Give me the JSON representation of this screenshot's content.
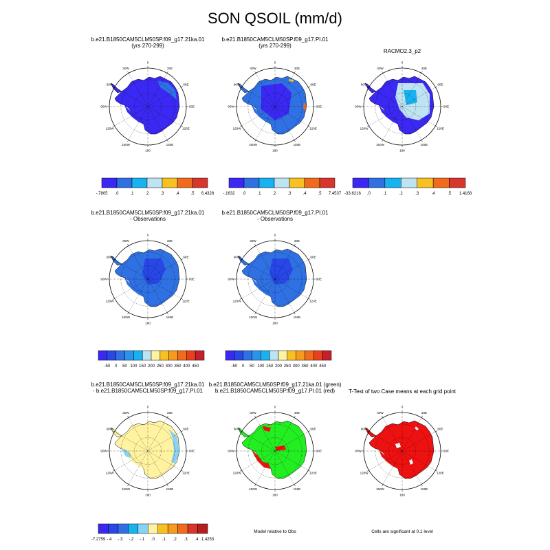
{
  "title": "SON QSOIL (mm/d)",
  "lon_labels": [
    "30W",
    "0",
    "30E",
    "60E",
    "90E",
    "120E",
    "150E",
    "180",
    "150W",
    "120W",
    "90W",
    "60W"
  ],
  "palettes": {
    "p8": [
      "#3b28f2",
      "#2f71e3",
      "#19b2f0",
      "#bfe3f2",
      "#f7c121",
      "#f26b1d",
      "#d8362c"
    ],
    "p12": [
      "#3b28f2",
      "#2747e6",
      "#2f71e3",
      "#2b93ea",
      "#19b2f0",
      "#bfe3f2",
      "#fff2a0",
      "#f7c121",
      "#f79a1d",
      "#f26b1d",
      "#e8401f",
      "#c5202a"
    ],
    "p11": [
      "#3b28f2",
      "#2747e6",
      "#2f71e3",
      "#19b2f0",
      "#88d2f2",
      "#fff2a0",
      "#f7c121",
      "#f79a1d",
      "#f26b1d",
      "#d8362c",
      "#b51e1e"
    ]
  },
  "panels": [
    {
      "id": "p1",
      "title1": "b.e21.B1850CAM5CLM50SP.f09_g17.21ka.01",
      "title2": "(yrs 270-299)",
      "colorbar": {
        "palette": "p8",
        "labels": [
          "-.7805",
          ".0",
          ".1",
          ".2",
          ".3",
          ".4",
          ".5",
          "6.4328"
        ]
      }
    },
    {
      "id": "p2",
      "title1": "b.e21.B1850CAM5CLM50SP.f09_g17.PI.01",
      "title2": "(yrs 270-299)",
      "colorbar": {
        "palette": "p8",
        "labels": [
          "-.1632",
          ".0",
          ".1",
          ".2",
          ".3",
          ".4",
          ".5",
          "7.4537"
        ]
      }
    },
    {
      "id": "p3",
      "title1": "RACMO2.3_p2",
      "title2": "",
      "colorbar": {
        "palette": "p8",
        "labels": [
          "-33.6216",
          ".0",
          ".1",
          ".2",
          ".3",
          ".4",
          ".5",
          "1.4168"
        ]
      }
    },
    {
      "id": "p4",
      "title1": "b.e21.B1850CAM5CLM50SP.f09_g17.21ka.01",
      "title2": "- Observations",
      "colorbar": {
        "palette": "p12",
        "labels": [
          "-50",
          "0",
          "50",
          "100",
          "150",
          "200",
          "250",
          "300",
          "350",
          "400",
          "450"
        ]
      }
    },
    {
      "id": "p5",
      "title1": "b.e21.B1850CAM5CLM50SP.f09_g17.PI.01",
      "title2": "- Observations",
      "colorbar": {
        "palette": "p12",
        "labels": [
          "-50",
          "0",
          "50",
          "100",
          "150",
          "200",
          "250",
          "300",
          "350",
          "400",
          "450"
        ]
      }
    },
    {
      "id": "p7",
      "title1": "b.e21.B1850CAM5CLM50SP.f09_g17.21ka.01",
      "title2": "- b.e21.B1850CAM5CLM50SP.f09_g17.PI.01",
      "colorbar": {
        "palette": "p11",
        "labels": [
          "-7.2759",
          "-.4",
          "-.3",
          "-.2",
          "-.1",
          ".0",
          ".1",
          ".2",
          ".3",
          ".4",
          "1.4253"
        ]
      }
    },
    {
      "id": "p8",
      "title1": "b.e21.B1850CAM5CLM50SP.f09_g17.21ka.01 (green)",
      "title2": "b.e21.B1850CAM5CLM50SP.f09_g17.PI.01 (red)",
      "note": "Model relative to Obs"
    },
    {
      "id": "p9",
      "title1": "T-Test of two Case means at each grid point",
      "title2": "",
      "note": "Cells are significant at 0.1 level"
    }
  ]
}
